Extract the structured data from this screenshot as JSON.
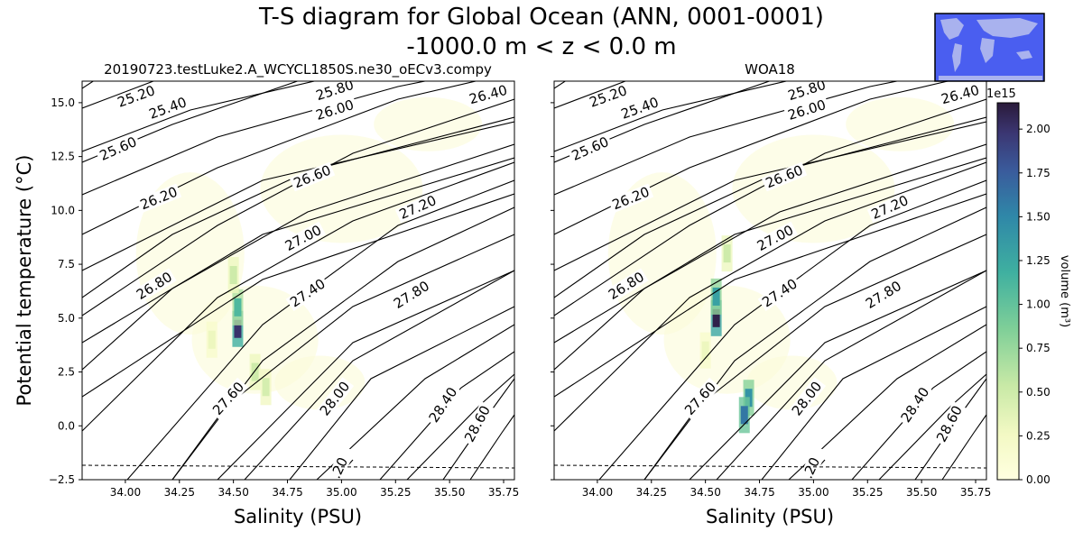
{
  "figure": {
    "title_line1": "T-S diagram for Global Ocean (ANN, 0001-0001)",
    "title_line2": "-1000.0 m < z < 0.0 m",
    "map_inset_colors": {
      "ocean": "#4a5ef0",
      "land": "#a9b2ee"
    }
  },
  "chart_data": [
    {
      "type": "heatmap",
      "title": "20190723.testLuke2.A_WCYCL1850S.ne30_oECv3.compy",
      "xlabel": "Salinity (PSU)",
      "ylabel": "Potential temperature ($^\\circ$C)",
      "ylabel_display": "Potential temperature (°C)",
      "xlim": [
        33.8,
        35.8
      ],
      "ylim": [
        -2.5,
        16.0
      ],
      "xticks": [
        "34.00",
        "34.25",
        "34.50",
        "34.75",
        "35.00",
        "35.25",
        "35.50",
        "35.75"
      ],
      "yticks": [
        "−2.5",
        "0.0",
        "2.5",
        "5.0",
        "7.5",
        "10.0",
        "12.5",
        "15.0"
      ],
      "freezing_line": {
        "style": "dashed",
        "temperature_at_33.8": -1.85,
        "temperature_at_35.8": -1.95
      },
      "density_contour_labels": [
        "25.20",
        "25.40",
        "25.60",
        "25.80",
        "26.00",
        "26.20",
        "26.40",
        "26.60",
        "26.80",
        "27.00",
        "27.20",
        "27.40",
        "27.60",
        "27.80",
        "28.00",
        "28.40",
        "28.60",
        ".20"
      ],
      "volume_clusters": [
        {
          "salinity": 34.52,
          "temperature": 4.5,
          "volume_1e15_m3": 2.0
        },
        {
          "salinity": 34.52,
          "temperature": 5.5,
          "volume_1e15_m3": 1.1
        },
        {
          "salinity": 34.5,
          "temperature": 7.0,
          "volume_1e15_m3": 0.5
        },
        {
          "salinity": 34.6,
          "temperature": 2.5,
          "volume_1e15_m3": 0.5
        },
        {
          "salinity": 34.65,
          "temperature": 1.8,
          "volume_1e15_m3": 0.45
        },
        {
          "salinity": 34.4,
          "temperature": 4.0,
          "volume_1e15_m3": 0.3
        }
      ]
    },
    {
      "type": "heatmap",
      "title": "WOA18",
      "xlabel": "Salinity (PSU)",
      "xlim": [
        33.8,
        35.8
      ],
      "ylim": [
        -2.5,
        16.0
      ],
      "xticks": [
        "34.00",
        "34.25",
        "34.50",
        "34.75",
        "35.00",
        "35.25",
        "35.50",
        "35.75"
      ],
      "freezing_line": {
        "style": "dashed",
        "temperature_at_33.8": -1.85,
        "temperature_at_35.8": -1.95
      },
      "density_contour_labels": [
        "25.20",
        "25.40",
        "25.60",
        "25.80",
        "26.00",
        "26.20",
        "26.40",
        "26.60",
        "26.80",
        "27.00",
        "27.20",
        "27.40",
        "27.60",
        "27.80",
        "28.00",
        "28.40",
        "28.60",
        ".20"
      ],
      "volume_clusters": [
        {
          "salinity": 34.55,
          "temperature": 5.0,
          "volume_1e15_m3": 2.1
        },
        {
          "salinity": 34.55,
          "temperature": 6.0,
          "volume_1e15_m3": 1.3
        },
        {
          "salinity": 34.7,
          "temperature": 1.3,
          "volume_1e15_m3": 1.4
        },
        {
          "salinity": 34.68,
          "temperature": 0.5,
          "volume_1e15_m3": 1.6
        },
        {
          "salinity": 34.6,
          "temperature": 8.0,
          "volume_1e15_m3": 0.5
        },
        {
          "salinity": 34.5,
          "temperature": 3.5,
          "volume_1e15_m3": 0.3
        }
      ]
    }
  ],
  "colorbar": {
    "label": "volume (m$^3$)",
    "label_display": "volume (m³)",
    "multiplier": "1e15",
    "min": 0.0,
    "max": 2.15,
    "ticks": [
      "0.00",
      "0.25",
      "0.50",
      "0.75",
      "1.00",
      "1.25",
      "1.50",
      "1.75",
      "2.00"
    ]
  }
}
